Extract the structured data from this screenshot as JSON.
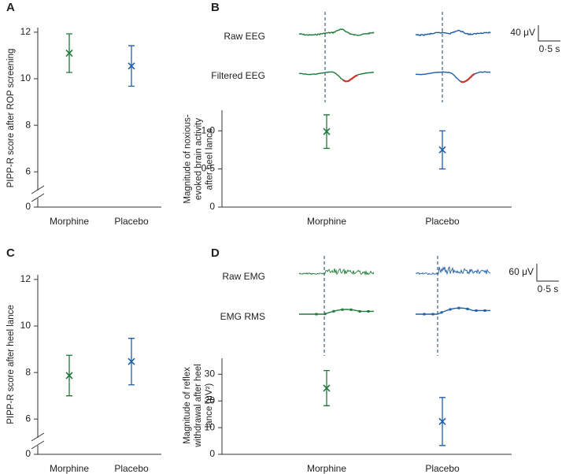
{
  "chart_data": [
    {
      "type": "errorbar",
      "panel": "A",
      "y_label": "PIPP-R score after ROP screening",
      "categories": [
        "Morphine",
        "Placebo"
      ],
      "values": [
        11.1,
        10.55
      ],
      "errors": [
        0.83,
        0.87
      ],
      "colors": [
        "#1f7a3a",
        "#1f5ea8"
      ],
      "ylim": [
        0,
        12.2
      ],
      "ybreak": [
        0,
        5.5
      ],
      "yticks": [
        0,
        6,
        8,
        10,
        12
      ]
    },
    {
      "type": "errorbar",
      "panel": "B",
      "y_label": "Magnitude of noxious-evoked brain activity after heel lance",
      "trace_labels": [
        "Raw EEG",
        "Filtered EEG"
      ],
      "scale_bar": [
        "40 μV",
        "0·5 s"
      ],
      "categories": [
        "Morphine",
        "Placebo"
      ],
      "values": [
        0.99,
        0.75
      ],
      "errors": [
        0.22,
        0.25
      ],
      "colors": [
        "#1f7a3a",
        "#1f5ea8"
      ],
      "ylim": [
        0,
        1.27
      ],
      "yticks": [
        0,
        {
          "value": 0.5,
          "label": "0·5"
        },
        {
          "value": 1,
          "label": "1·0"
        }
      ]
    },
    {
      "type": "errorbar",
      "panel": "C",
      "y_label": "PIPP-R score after heel lance",
      "categories": [
        "Morphine",
        "Placebo"
      ],
      "values": [
        7.87,
        8.47
      ],
      "errors": [
        0.87,
        1.0
      ],
      "colors": [
        "#1f7a3a",
        "#1f5ea8"
      ],
      "ylim": [
        0,
        12.2
      ],
      "ybreak": [
        0,
        5.5
      ],
      "yticks": [
        0,
        6,
        8,
        10,
        12
      ]
    },
    {
      "type": "errorbar",
      "panel": "D",
      "y_label": "Magnitude of reflex withdrawal after heel lance (μV²)",
      "trace_labels": [
        "Raw EMG",
        "EMG RMS"
      ],
      "scale_bar": [
        "60 μV",
        "0·5 s"
      ],
      "categories": [
        "Morphine",
        "Placebo"
      ],
      "values": [
        24.8,
        12.3
      ],
      "errors": [
        6.6,
        9.0
      ],
      "colors": [
        "#1f7a3a",
        "#1f5ea8"
      ],
      "ylim": [
        0,
        36
      ],
      "yticks": [
        0,
        10,
        20,
        30
      ]
    }
  ]
}
